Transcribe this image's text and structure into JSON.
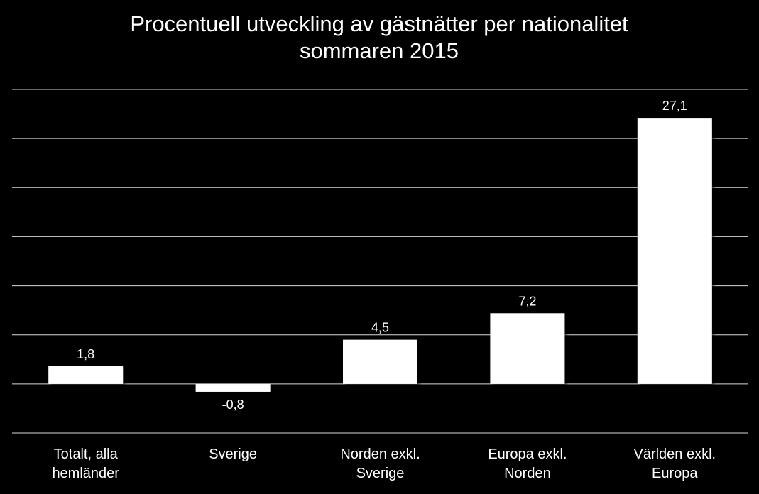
{
  "chart_data": {
    "type": "bar",
    "title": "Procentuell utveckling av gästnätter per nationalitet",
    "subtitle": "sommaren 2015",
    "categories": [
      [
        "Totalt, alla",
        "hemländer"
      ],
      [
        "Sverige"
      ],
      [
        "Norden exkl.",
        "Sverige"
      ],
      [
        "Europa exkl.",
        "Norden"
      ],
      [
        "Världen exkl.",
        "Europa"
      ]
    ],
    "values": [
      1.8,
      -0.8,
      4.5,
      7.2,
      27.1
    ],
    "labels": [
      "1,8",
      "-0,8",
      "4,5",
      "7,2",
      "27,1"
    ],
    "ylim": [
      -5,
      30
    ],
    "y_gridlines": [
      -5,
      0,
      5,
      10,
      15,
      20,
      25,
      30
    ],
    "xlabel": "",
    "ylabel": "",
    "grid": true,
    "legend": "none"
  },
  "colors": {
    "background": "#000000",
    "bar": "#ffffff",
    "grid": "#d9d9d9",
    "text": "#ffffff"
  }
}
